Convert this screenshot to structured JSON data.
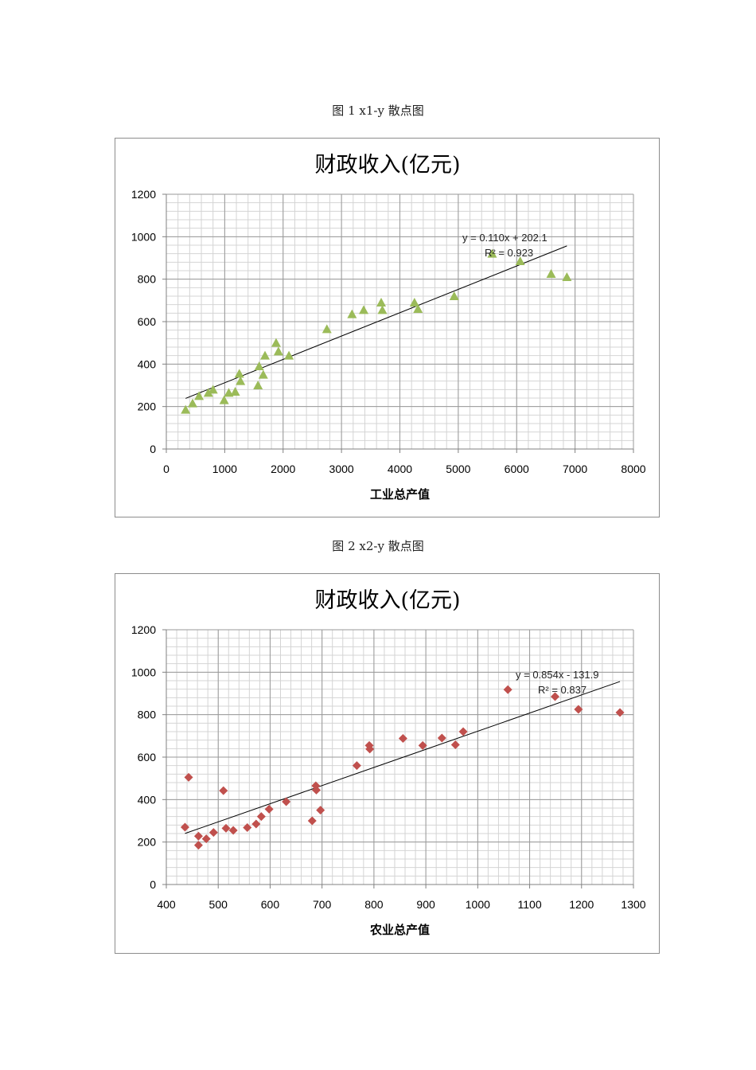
{
  "figures": [
    {
      "caption": "图 1 x1-y 散点图",
      "chart_data": {
        "type": "scatter",
        "title": "财政收入(亿元)",
        "xlabel": "工业总产值",
        "ylabel": "",
        "xlim": [
          0,
          8000
        ],
        "ylim": [
          0,
          1200
        ],
        "x_ticks": [
          0,
          1000,
          2000,
          3000,
          4000,
          5000,
          6000,
          7000,
          8000
        ],
        "y_ticks": [
          0,
          200,
          400,
          600,
          800,
          1000,
          1200
        ],
        "x_minor_step": 200,
        "y_minor_step": 40,
        "grid": true,
        "marker": "triangle",
        "marker_color": "#9bbb59",
        "points": [
          [
            330,
            185
          ],
          [
            450,
            215
          ],
          [
            560,
            250
          ],
          [
            720,
            265
          ],
          [
            800,
            280
          ],
          [
            990,
            230
          ],
          [
            1070,
            265
          ],
          [
            1180,
            270
          ],
          [
            1250,
            355
          ],
          [
            1270,
            320
          ],
          [
            1570,
            300
          ],
          [
            1590,
            390
          ],
          [
            1660,
            350
          ],
          [
            1690,
            440
          ],
          [
            1880,
            500
          ],
          [
            1920,
            460
          ],
          [
            2100,
            440
          ],
          [
            2750,
            565
          ],
          [
            3180,
            635
          ],
          [
            3380,
            655
          ],
          [
            3680,
            690
          ],
          [
            3700,
            655
          ],
          [
            4250,
            690
          ],
          [
            4310,
            660
          ],
          [
            4930,
            720
          ],
          [
            5580,
            920
          ],
          [
            6060,
            885
          ],
          [
            6590,
            825
          ],
          [
            6860,
            810
          ]
        ],
        "trendline": {
          "slope": 0.11,
          "intercept": 202.1,
          "x_range": [
            330,
            6860
          ],
          "equation": "y = 0.110x + 202.1",
          "r2": "R² = 0.923"
        }
      }
    },
    {
      "caption": "图 2 x2-y 散点图",
      "chart_data": {
        "type": "scatter",
        "title": "财政收入(亿元)",
        "xlabel": "农业总产值",
        "ylabel": "",
        "xlim": [
          400,
          1300
        ],
        "ylim": [
          0,
          1200
        ],
        "x_ticks": [
          400,
          500,
          600,
          700,
          800,
          900,
          1000,
          1100,
          1200,
          1300
        ],
        "y_ticks": [
          0,
          200,
          400,
          600,
          800,
          1000,
          1200
        ],
        "x_minor_step": 20,
        "y_minor_step": 40,
        "grid": true,
        "marker": "diamond",
        "marker_color": "#c0504d",
        "points": [
          [
            436,
            270
          ],
          [
            443,
            505
          ],
          [
            462,
            185
          ],
          [
            462,
            228
          ],
          [
            477,
            215
          ],
          [
            491,
            245
          ],
          [
            510,
            442
          ],
          [
            515,
            265
          ],
          [
            529,
            255
          ],
          [
            556,
            268
          ],
          [
            573,
            285
          ],
          [
            583,
            320
          ],
          [
            598,
            355
          ],
          [
            631,
            390
          ],
          [
            681,
            300
          ],
          [
            688,
            465
          ],
          [
            689,
            445
          ],
          [
            697,
            350
          ],
          [
            767,
            560
          ],
          [
            791,
            655
          ],
          [
            792,
            638
          ],
          [
            856,
            688
          ],
          [
            894,
            655
          ],
          [
            931,
            690
          ],
          [
            957,
            658
          ],
          [
            972,
            720
          ],
          [
            1058,
            918
          ],
          [
            1149,
            885
          ],
          [
            1194,
            825
          ],
          [
            1274,
            810
          ]
        ],
        "trendline": {
          "slope": 0.854,
          "intercept": -131.9,
          "x_range": [
            436,
            1274
          ],
          "equation": "y = 0.854x - 131.9",
          "r2": "R² = 0.837"
        }
      }
    }
  ]
}
